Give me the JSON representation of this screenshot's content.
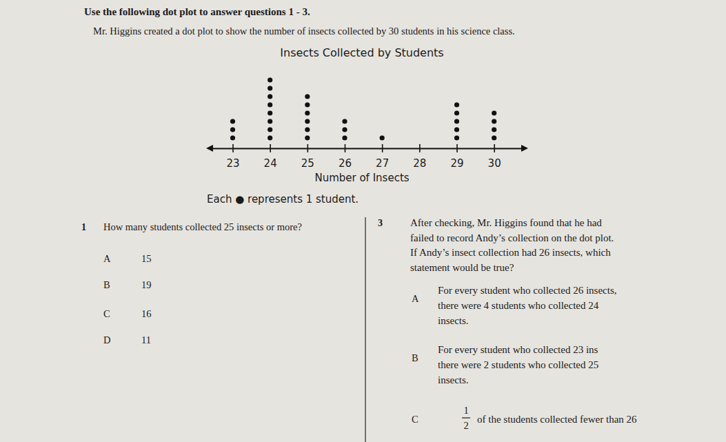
{
  "header": {
    "instruction": "Use the following dot plot to answer questions 1 - 3.",
    "intro": "Mr. Higgins created a dot plot to show the number of insects collected by 30 students in his science class."
  },
  "chart_data": {
    "type": "dot",
    "title": "Insects Collected by Students",
    "x_label": "Number of Insects",
    "x": [
      23,
      24,
      25,
      26,
      27,
      28,
      29,
      30
    ],
    "values": [
      3,
      8,
      6,
      3,
      1,
      0,
      5,
      4
    ],
    "xlim": [
      22.4,
      30.8
    ],
    "xticks": [
      23,
      24,
      25,
      26,
      27,
      28,
      29,
      30
    ],
    "color": "#111111",
    "marker": "circle"
  },
  "note": "Each ● represents 1 student.",
  "questions": [
    {
      "number": "1",
      "lines": [
        "How many students collected 25 insects or more?"
      ],
      "options": [
        {
          "letter": "A",
          "lines": [
            "15"
          ]
        },
        {
          "letter": "B",
          "lines": [
            "19"
          ]
        },
        {
          "letter": "C",
          "lines": [
            "16"
          ]
        },
        {
          "letter": "D",
          "lines": [
            "11"
          ]
        }
      ]
    },
    {
      "number": "3",
      "lines": [
        "After checking, Mr. Higgins found that he had",
        "failed to record Andy’s collection on the dot plot.",
        "If Andy’s insect collection had 26 insects, which",
        "statement would be true?"
      ],
      "options": [
        {
          "letter": "A",
          "lines": [
            "For every student who collected 26 insects,",
            "there were 4 students who collected 24",
            "insects."
          ]
        },
        {
          "letter": "B",
          "lines": [
            "For every student who collected 23 ins",
            "there were 2 students who collected 25",
            "insects."
          ]
        },
        {
          "letter": "C",
          "numerator": "1",
          "denominator": "2",
          "lines": [
            "of the students collected fewer than 26"
          ]
        }
      ]
    }
  ]
}
